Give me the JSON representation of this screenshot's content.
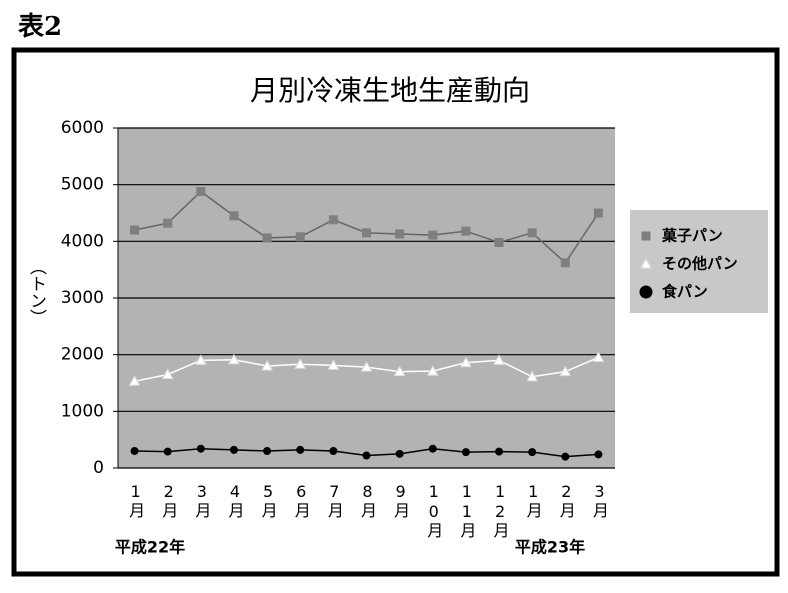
{
  "label": "表2",
  "chart_data": {
    "type": "line",
    "title": "月別冷凍生地生産動向",
    "y_label": "（トン）",
    "categories": [
      "1月",
      "2月",
      "3月",
      "4月",
      "5月",
      "6月",
      "7月",
      "8月",
      "9月",
      "10月",
      "11月",
      "12月",
      "1月",
      "2月",
      "3月"
    ],
    "year_labels": [
      "平成22年",
      "平成23年"
    ],
    "series": [
      {
        "name": "菓子パン",
        "color": "#7f7f7f",
        "marker": "square",
        "values": [
          4200,
          4320,
          4880,
          4450,
          4060,
          4080,
          4380,
          4150,
          4130,
          4110,
          4180,
          3980,
          4150,
          3620,
          4500
        ]
      },
      {
        "name": "その他パン",
        "color": "#ffffff",
        "marker": "triangle",
        "values": [
          1530,
          1650,
          1900,
          1910,
          1800,
          1830,
          1810,
          1780,
          1700,
          1710,
          1860,
          1900,
          1610,
          1700,
          1950
        ]
      },
      {
        "name": "食パン",
        "color": "#000000",
        "marker": "circle",
        "values": [
          300,
          290,
          340,
          320,
          300,
          320,
          300,
          220,
          250,
          340,
          280,
          290,
          280,
          200,
          240
        ]
      }
    ],
    "ylim": [
      0,
      6000
    ],
    "yticks": [
      0,
      1000,
      2000,
      3000,
      4000,
      5000,
      6000
    ],
    "grid": true,
    "legend": "right"
  }
}
